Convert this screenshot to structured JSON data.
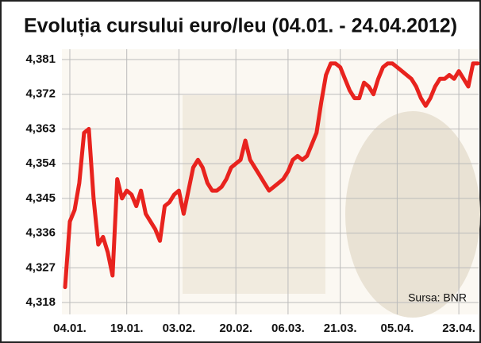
{
  "chart_data": {
    "type": "line",
    "title": "Evoluția cursului euro/leu (04.01. - 24.04.2012)",
    "source": "Sursa: BNR",
    "categories": [
      null,
      "04.01.",
      null,
      null,
      null,
      null,
      null,
      null,
      null,
      null,
      null,
      null,
      null,
      "19.01.",
      null,
      null,
      null,
      null,
      null,
      null,
      null,
      null,
      null,
      null,
      "03.02.",
      null,
      null,
      null,
      null,
      null,
      null,
      null,
      null,
      null,
      null,
      null,
      "20.02.",
      null,
      null,
      null,
      null,
      null,
      null,
      null,
      null,
      null,
      null,
      "06.03.",
      null,
      null,
      null,
      null,
      null,
      null,
      null,
      null,
      null,
      null,
      "21.03.",
      null,
      null,
      null,
      null,
      null,
      null,
      null,
      null,
      null,
      null,
      null,
      "05.04.",
      null,
      null,
      null,
      null,
      null,
      null,
      null,
      null,
      null,
      null,
      null,
      null,
      "23.04.",
      null,
      null,
      null,
      null
    ],
    "values": [
      4.322,
      4.339,
      4.342,
      4.349,
      4.362,
      4.363,
      4.345,
      4.333,
      4.335,
      4.331,
      4.325,
      4.35,
      4.345,
      4.347,
      4.346,
      4.343,
      4.347,
      4.341,
      4.339,
      4.337,
      4.334,
      4.343,
      4.344,
      4.346,
      4.347,
      4.341,
      4.347,
      4.353,
      4.355,
      4.353,
      4.349,
      4.347,
      4.347,
      4.348,
      4.35,
      4.353,
      4.354,
      4.355,
      4.36,
      4.355,
      4.353,
      4.351,
      4.349,
      4.347,
      4.348,
      4.349,
      4.35,
      4.352,
      4.355,
      4.356,
      4.355,
      4.356,
      4.359,
      4.362,
      4.37,
      4.377,
      4.38,
      4.38,
      4.379,
      4.376,
      4.373,
      4.371,
      4.371,
      4.375,
      4.374,
      4.372,
      4.376,
      4.379,
      4.38,
      4.38,
      4.379,
      4.378,
      4.377,
      4.376,
      4.374,
      4.371,
      4.369,
      4.371,
      4.374,
      4.376,
      4.376,
      4.377,
      4.376,
      4.378,
      4.376,
      4.374,
      4.38,
      4.38
    ],
    "color": "#e8231e",
    "ylim": [
      4.318,
      4.381
    ],
    "yticks": [
      {
        "value": 4.318,
        "label": "4,318"
      },
      {
        "value": 4.327,
        "label": "4,327"
      },
      {
        "value": 4.336,
        "label": "4,336"
      },
      {
        "value": 4.345,
        "label": "4,345"
      },
      {
        "value": 4.354,
        "label": "4,354"
      },
      {
        "value": 4.363,
        "label": "4,363"
      },
      {
        "value": 4.372,
        "label": "4,372"
      },
      {
        "value": 4.381,
        "label": "4,381"
      }
    ],
    "grid": true
  }
}
